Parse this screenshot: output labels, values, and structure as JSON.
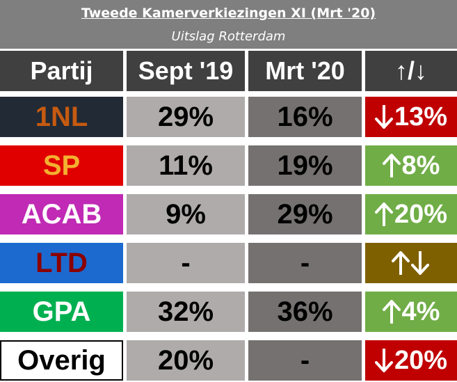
{
  "header": {
    "title": "Tweede Kamerverkiezingen XI (Mrt '20)",
    "subtitle": "Uitslag Rotterdam"
  },
  "columns": {
    "party": "Partij",
    "sept19": "Sept '19",
    "mrt20": "Mrt '20",
    "change": "↑/↓"
  },
  "rows": [
    {
      "party": "1NL",
      "sept19": "29%",
      "mrt20": "16%",
      "change": "13%",
      "direction": "down",
      "party_bg": "#222a35",
      "party_color": "#c55a11",
      "change_bg": "#c00000"
    },
    {
      "party": "SP",
      "sept19": "11%",
      "mrt20": "19%",
      "change": "8%",
      "direction": "up",
      "party_bg": "#e00000",
      "party_color": "#f4b030",
      "change_bg": "#70ad47"
    },
    {
      "party": "ACAB",
      "sept19": "9%",
      "mrt20": "29%",
      "change": "20%",
      "direction": "up",
      "party_bg": "#c02ab4",
      "party_color": "#ffffff",
      "change_bg": "#70ad47"
    },
    {
      "party": "LTD",
      "sept19": "-",
      "mrt20": "-",
      "change": "",
      "direction": "both",
      "party_bg": "#1c6ad0",
      "party_color": "#8b0000",
      "change_bg": "#7f6000"
    },
    {
      "party": "GPA",
      "sept19": "32%",
      "mrt20": "36%",
      "change": "4%",
      "direction": "up",
      "party_bg": "#00b050",
      "party_color": "#ffffff",
      "change_bg": "#70ad47"
    },
    {
      "party": "Overig",
      "sept19": "20%",
      "mrt20": "-",
      "change": "20%",
      "direction": "down",
      "party_bg": "#ffffff",
      "party_color": "#000000",
      "change_bg": "#c00000"
    }
  ]
}
